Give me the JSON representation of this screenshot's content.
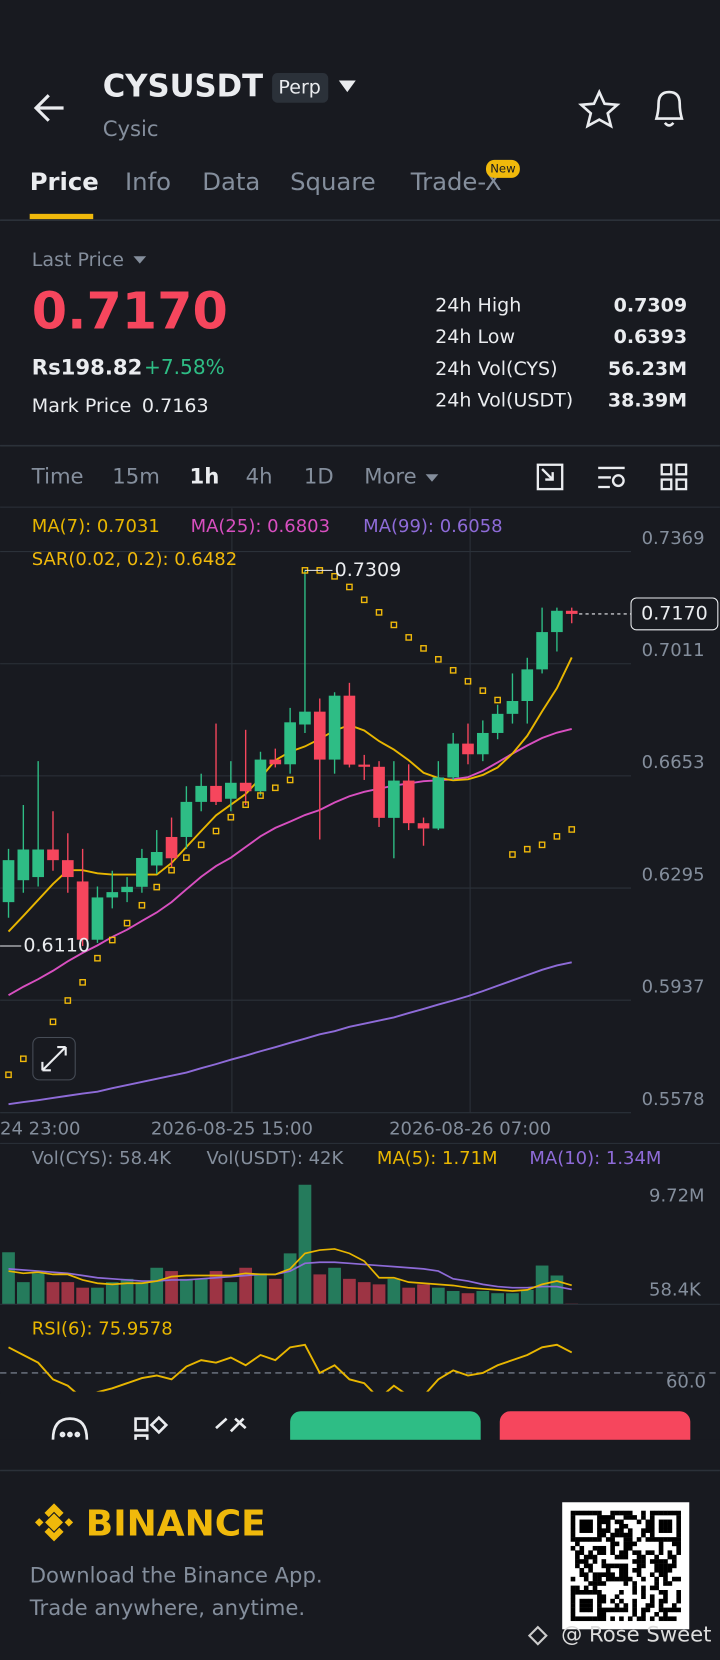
{
  "header": {
    "symbol": "CYSUSDT",
    "badge": "Perp",
    "name": "Cysic"
  },
  "tabs": [
    "Price",
    "Info",
    "Data",
    "Square",
    "Trade-X"
  ],
  "tab_badge": "New",
  "last_price": {
    "label": "Last Price",
    "value": "0.7170",
    "fiat": "Rs198.82",
    "change": "+7.58%",
    "mark_label": "Mark Price",
    "mark_value": "0.7163"
  },
  "stats": [
    [
      "24h High",
      "0.7309"
    ],
    [
      "24h Low",
      "0.6393"
    ],
    [
      "24h Vol(CYS)",
      "56.23M"
    ],
    [
      "24h Vol(USDT)",
      "38.39M"
    ]
  ],
  "intervals": [
    "Time",
    "15m",
    "1h",
    "4h",
    "1D",
    "More"
  ],
  "chart": {
    "type": "candlestick",
    "legend": [
      "MA(7): 0.7031",
      "MA(25): 0.6803",
      "MA(99): 0.6058"
    ],
    "sar_legend": "SAR(0.02, 0.2): 0.6482",
    "ylim": [
      0.5578,
      0.7369
    ],
    "yticks": [
      0.7369,
      0.7011,
      0.6653,
      0.6295,
      0.5937,
      0.5578
    ],
    "xticks": [
      "24 23:00",
      "2026-08-25 15:00",
      "2026-08-26 07:00"
    ],
    "high_label": "0.7309",
    "low_label": "0.6110",
    "current_label": "0.7170",
    "candles": [
      [
        0.625,
        0.642,
        0.62,
        0.6384
      ],
      [
        0.632,
        0.656,
        0.628,
        0.6418
      ],
      [
        0.633,
        0.67,
        0.63,
        0.6418
      ],
      [
        0.6418,
        0.654,
        0.635,
        0.6384
      ],
      [
        0.6384,
        0.647,
        0.628,
        0.633
      ],
      [
        0.6316,
        0.642,
        0.611,
        0.613
      ],
      [
        0.613,
        0.63,
        0.612,
        0.6265
      ],
      [
        0.6265,
        0.635,
        0.623,
        0.6282
      ],
      [
        0.6282,
        0.633,
        0.625,
        0.6299
      ],
      [
        0.6299,
        0.642,
        0.628,
        0.6391
      ],
      [
        0.6367,
        0.648,
        0.634,
        0.641
      ],
      [
        0.6458,
        0.652,
        0.636,
        0.639
      ],
      [
        0.6458,
        0.662,
        0.642,
        0.657
      ],
      [
        0.657,
        0.666,
        0.654,
        0.6621
      ],
      [
        0.6621,
        0.682,
        0.656,
        0.657
      ],
      [
        0.658,
        0.67,
        0.654,
        0.6631
      ],
      [
        0.6631,
        0.68,
        0.656,
        0.6604
      ],
      [
        0.6604,
        0.673,
        0.659,
        0.6705
      ],
      [
        0.6705,
        0.674,
        0.668,
        0.669
      ],
      [
        0.669,
        0.687,
        0.666,
        0.6824
      ],
      [
        0.6817,
        0.7309,
        0.679,
        0.6858
      ],
      [
        0.6858,
        0.69,
        0.645,
        0.6705
      ],
      [
        0.6705,
        0.692,
        0.666,
        0.6909
      ],
      [
        0.6909,
        0.695,
        0.668,
        0.6689
      ],
      [
        0.6689,
        0.672,
        0.664,
        0.6682
      ],
      [
        0.6682,
        0.67,
        0.649,
        0.6519
      ],
      [
        0.6519,
        0.67,
        0.639,
        0.6638
      ],
      [
        0.6638,
        0.669,
        0.648,
        0.6502
      ],
      [
        0.6502,
        0.652,
        0.643,
        0.6485
      ],
      [
        0.6485,
        0.67,
        0.648,
        0.6648
      ],
      [
        0.6648,
        0.679,
        0.664,
        0.6756
      ],
      [
        0.6756,
        0.682,
        0.669,
        0.6722
      ],
      [
        0.6722,
        0.683,
        0.67,
        0.679
      ],
      [
        0.679,
        0.688,
        0.677,
        0.6851
      ],
      [
        0.6851,
        0.698,
        0.682,
        0.6892
      ],
      [
        0.6892,
        0.703,
        0.682,
        0.6993
      ],
      [
        0.6993,
        0.719,
        0.698,
        0.7112
      ],
      [
        0.7112,
        0.719,
        0.705,
        0.718
      ],
      [
        0.718,
        0.719,
        0.714,
        0.717
      ]
    ],
    "ma7": [
      0.6156,
      0.6206,
      0.6257,
      0.6308,
      0.6352,
      0.6352,
      0.6342,
      0.6338,
      0.6338,
      0.6338,
      0.6338,
      0.6375,
      0.6426,
      0.6477,
      0.6527,
      0.6561,
      0.6595,
      0.6646,
      0.6703,
      0.673,
      0.6747,
      0.6771,
      0.6798,
      0.6815,
      0.6798,
      0.6764,
      0.6737,
      0.6703,
      0.6663,
      0.6646,
      0.6639,
      0.6642,
      0.6656,
      0.668,
      0.6724,
      0.6781,
      0.6859,
      0.6933,
      0.7031
    ],
    "ma25": [
      0.5953,
      0.598,
      0.6004,
      0.6031,
      0.6061,
      0.6088,
      0.6112,
      0.6139,
      0.6162,
      0.619,
      0.6217,
      0.625,
      0.6291,
      0.6331,
      0.6365,
      0.6392,
      0.6426,
      0.646,
      0.6487,
      0.6507,
      0.6528,
      0.6544,
      0.6568,
      0.6588,
      0.6602,
      0.6612,
      0.6622,
      0.6629,
      0.6636,
      0.6639,
      0.6642,
      0.6649,
      0.6669,
      0.6696,
      0.6724,
      0.675,
      0.6774,
      0.6791,
      0.6803
    ],
    "ma99": [
      0.5605,
      0.5612,
      0.5618,
      0.5625,
      0.5632,
      0.5639,
      0.5645,
      0.5656,
      0.5666,
      0.5676,
      0.5686,
      0.5696,
      0.5706,
      0.572,
      0.5733,
      0.5747,
      0.576,
      0.5774,
      0.5787,
      0.5801,
      0.5814,
      0.5828,
      0.5838,
      0.5852,
      0.5862,
      0.5872,
      0.5882,
      0.5896,
      0.5909,
      0.5923,
      0.5936,
      0.595,
      0.5966,
      0.5983,
      0.6,
      0.6017,
      0.6034,
      0.6048,
      0.6058
    ],
    "sar": [
      0.5699,
      0.575,
      0.5801,
      0.5868,
      0.5936,
      0.5994,
      0.6071,
      0.6129,
      0.6183,
      0.624,
      0.6298,
      0.6352,
      0.6392,
      0.6433,
      0.6477,
      0.6521,
      0.6561,
      0.659,
      0.6615,
      0.664,
      0.7309,
      0.7309,
      0.729,
      0.7256,
      0.7215,
      0.7175,
      0.7135,
      0.7095,
      0.706,
      0.7025,
      0.699,
      0.6955,
      0.6925,
      0.6895,
      0.6402,
      0.6419,
      0.6433,
      0.646,
      0.6482
    ]
  },
  "volume": {
    "legend": [
      "Vol(CYS): 58.4K",
      "Vol(USDT): 42K",
      "MA(5): 1.71M",
      "MA(10): 1.34M"
    ],
    "ylim": [
      0,
      11000000
    ],
    "yticks": [
      {
        "value": 9720000,
        "label": "9.72M"
      },
      {
        "value": 58400,
        "label": "58.4K"
      }
    ],
    "values": [
      4700000,
      2000000,
      2800000,
      2000000,
      2000000,
      1500000,
      1500000,
      2000000,
      2300000,
      2000000,
      3300000,
      3000000,
      2300000,
      2300000,
      3000000,
      2000000,
      3300000,
      2800000,
      2300000,
      4600000,
      10800000,
      2700000,
      3300000,
      2300000,
      2000000,
      1800000,
      2300000,
      1500000,
      1800000,
      1500000,
      1200000,
      1000000,
      1200000,
      1000000,
      1000000,
      1300000,
      3500000,
      2600000,
      58400
    ],
    "ma5": [
      3000000,
      2800000,
      2900000,
      2700000,
      2700000,
      2200000,
      1900000,
      1800000,
      1900000,
      1900000,
      2100000,
      2500000,
      2600000,
      2600000,
      2600000,
      2600000,
      2800000,
      2700000,
      2700000,
      3200000,
      4600000,
      4900000,
      5000000,
      4600000,
      3900000,
      2400000,
      2400000,
      2000000,
      1900000,
      1800000,
      1700000,
      1500000,
      1400000,
      1300000,
      1200000,
      1300000,
      1800000,
      2100000,
      1710000
    ],
    "ma10": [
      3200000,
      3100000,
      3000000,
      2900000,
      2800000,
      2600000,
      2400000,
      2300000,
      2200000,
      2100000,
      2100000,
      2200000,
      2200000,
      2300000,
      2400000,
      2500000,
      2600000,
      2700000,
      2700000,
      3000000,
      3700000,
      3800000,
      3800000,
      3700000,
      3600000,
      3500000,
      3400000,
      3300000,
      3200000,
      3000000,
      2300000,
      2100000,
      1800000,
      1600000,
      1500000,
      1500000,
      1600000,
      1600000,
      1340000
    ]
  },
  "rsi": {
    "legend": "RSI(6): 75.9578",
    "ylim": [
      45,
      107
    ],
    "yticks": [
      {
        "value": 60,
        "label": "60.0"
      }
    ],
    "values": [
      80,
      74,
      68,
      55,
      50,
      40,
      45,
      48,
      52,
      56,
      58,
      55,
      65,
      70,
      68,
      72,
      66,
      74,
      70,
      80,
      82,
      60,
      66,
      55,
      52,
      40,
      50,
      42,
      42,
      55,
      62,
      58,
      60,
      66,
      70,
      74,
      80,
      82,
      76
    ]
  },
  "footer": {
    "brand": "BINANCE",
    "line1": "Download the Binance App.",
    "line2": "Trade anywhere, anytime.",
    "watermark": "@ Rose Sweet"
  }
}
